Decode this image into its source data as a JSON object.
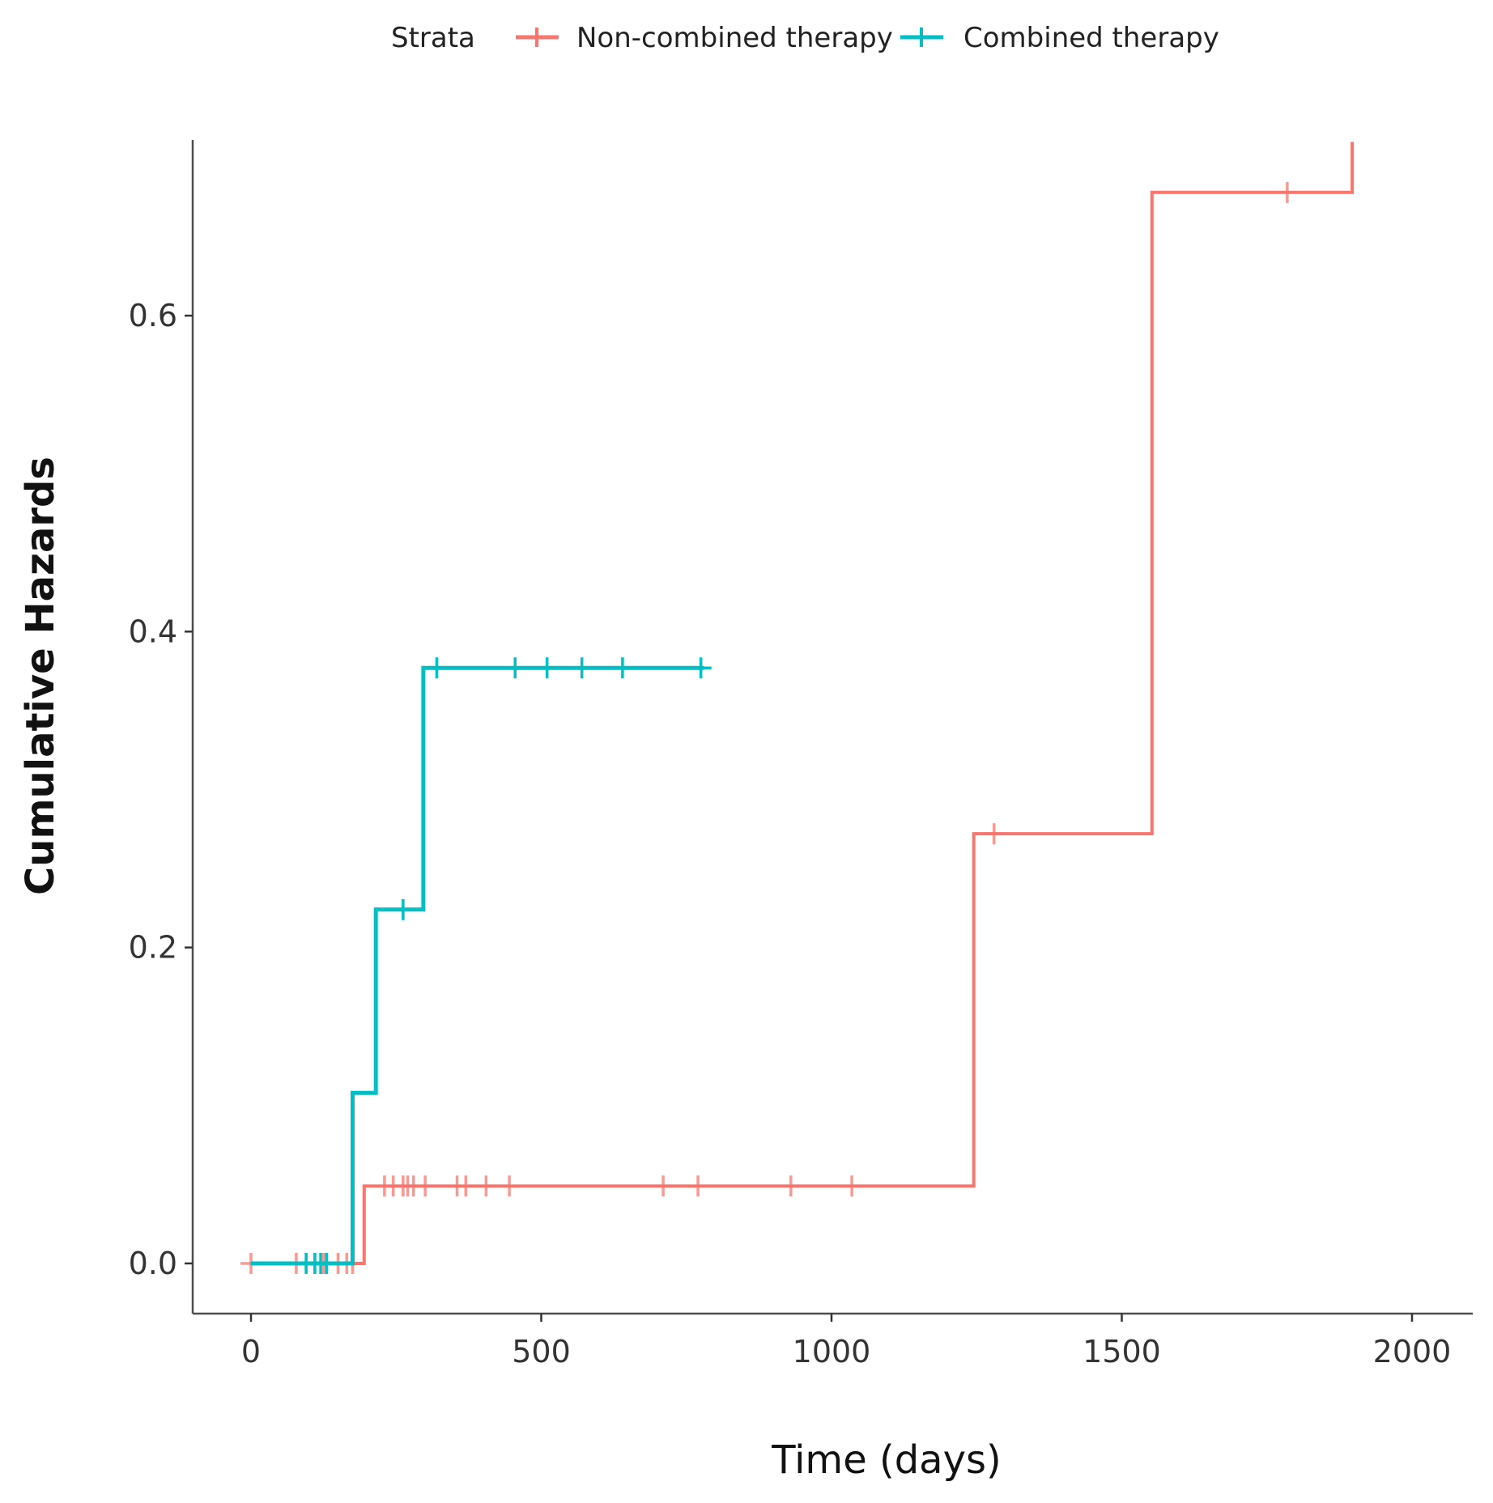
{
  "chart_data": {
    "type": "line",
    "subtype": "step",
    "title": "",
    "xlabel": "Time (days)",
    "ylabel": "Cumulative Hazards",
    "xlim": [
      -100,
      2100
    ],
    "ylim": [
      -0.033,
      0.71
    ],
    "xticks": [
      0,
      500,
      1000,
      1500,
      2000
    ],
    "xtick_labels": [
      "0",
      "500",
      "1000",
      "1500",
      "2000"
    ],
    "yticks": [
      0.0,
      0.2,
      0.4,
      0.6
    ],
    "ytick_labels": [
      "0.0",
      "0.2",
      "0.4",
      "0.6"
    ],
    "grid": false,
    "legend": {
      "title": "Strata",
      "position": "top",
      "entries": [
        "Non-combined therapy",
        "Combined therapy"
      ]
    },
    "series": [
      {
        "name": "Non-combined therapy",
        "color": "#F8766D",
        "steps": [
          {
            "x": 0,
            "y": 0.0
          },
          {
            "x": 195,
            "y": 0.049
          },
          {
            "x": 1245,
            "y": 0.272
          },
          {
            "x": 1552,
            "y": 0.678
          },
          {
            "x": 1897,
            "y": 0.71
          }
        ],
        "end_x": 1897,
        "censor_times": [
          0,
          78,
          95,
          110,
          125,
          150,
          165,
          175,
          230,
          245,
          262,
          270,
          280,
          300,
          355,
          370,
          405,
          445,
          710,
          770,
          930,
          1035,
          1280,
          1785
        ]
      },
      {
        "name": "Combined therapy",
        "color": "#00BFC4",
        "steps": [
          {
            "x": 0,
            "y": 0.0
          },
          {
            "x": 175,
            "y": 0.108
          },
          {
            "x": 215,
            "y": 0.224
          },
          {
            "x": 297,
            "y": 0.377
          }
        ],
        "end_x": 780,
        "censor_times": [
          95,
          110,
          120,
          130,
          262,
          320,
          455,
          510,
          570,
          640,
          775
        ]
      }
    ]
  }
}
